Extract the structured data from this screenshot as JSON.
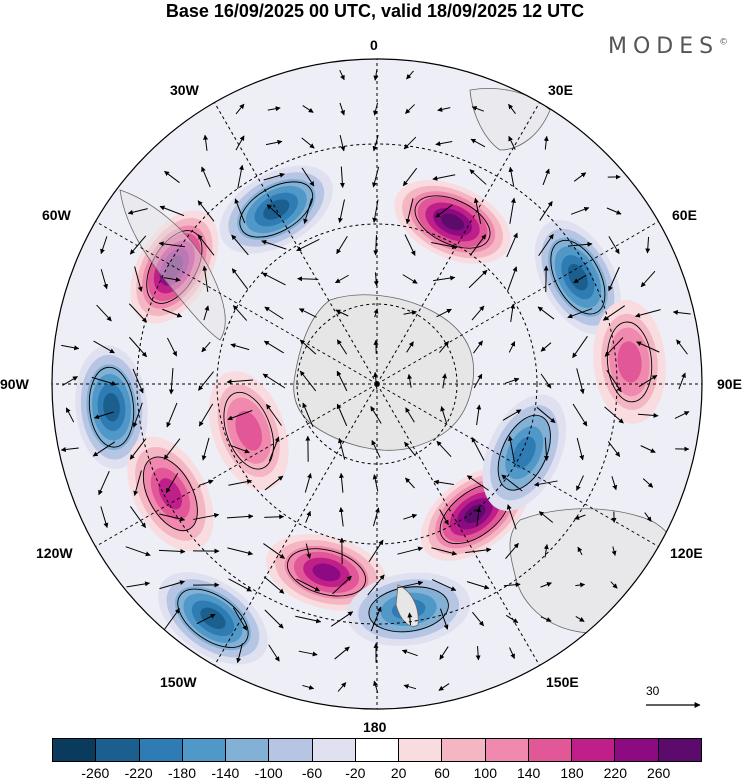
{
  "title": "Base 16/09/2025 00 UTC, valid 18/09/2025 12 UTC",
  "brand": "MODES",
  "brand_mark": "©",
  "longitude_labels": {
    "0": "0",
    "30E": "30E",
    "60E": "60E",
    "90E": "90E",
    "120E": "120E",
    "150E": "150E",
    "180": "180",
    "150W": "150W",
    "120W": "120W",
    "90W": "90W",
    "60W": "60W",
    "30W": "30W"
  },
  "reference_vector": "30",
  "colorbar": {
    "colors": [
      "#0b3b5c",
      "#1b5f8f",
      "#2f7bb3",
      "#4f98c7",
      "#83b1d6",
      "#b5c5e3",
      "#e0e1f0",
      "#ffffff",
      "#f8dcdf",
      "#f5b6c3",
      "#ef89ad",
      "#e25797",
      "#bf1f89",
      "#8e0a82",
      "#5c0a6b"
    ],
    "ticks": [
      "-260",
      "-220",
      "-180",
      "-140",
      "-100",
      "-60",
      "-20",
      "20",
      "60",
      "100",
      "140",
      "180",
      "220",
      "260"
    ]
  },
  "anomalies": [
    {
      "name": "anomaly-neg-30w-60w",
      "lon": -30,
      "lat_frac": 0.62,
      "value": -220
    },
    {
      "name": "anomaly-pos-25e",
      "lon": 25,
      "lat_frac": 0.55,
      "value": 260
    },
    {
      "name": "anomaly-pos-60w",
      "lon": -60,
      "lat_frac": 0.72,
      "value": 260
    },
    {
      "name": "anomaly-neg-60e",
      "lon": 62,
      "lat_frac": 0.7,
      "value": -220
    },
    {
      "name": "anomaly-neg-90w",
      "lon": -95,
      "lat_frac": 0.82,
      "value": -220
    },
    {
      "name": "anomaly-pos-90e",
      "lon": 85,
      "lat_frac": 0.78,
      "value": 140
    },
    {
      "name": "anomaly-pos-120w",
      "lon": -118,
      "lat_frac": 0.72,
      "value": 180
    },
    {
      "name": "anomaly-neg-140w",
      "lon": -145,
      "lat_frac": 0.88,
      "value": -220
    },
    {
      "name": "anomaly-pos-165w",
      "lon": -165,
      "lat_frac": 0.6,
      "value": 220
    },
    {
      "name": "anomaly-neg-170e",
      "lon": 172,
      "lat_frac": 0.7,
      "value": -180
    },
    {
      "name": "anomaly-pos-145e",
      "lon": 143,
      "lat_frac": 0.5,
      "value": 260
    },
    {
      "name": "anomaly-neg-115e",
      "lon": 115,
      "lat_frac": 0.5,
      "value": -180
    },
    {
      "name": "anomaly-pos-120w-inner",
      "lon": -110,
      "lat_frac": 0.42,
      "value": 140
    }
  ]
}
